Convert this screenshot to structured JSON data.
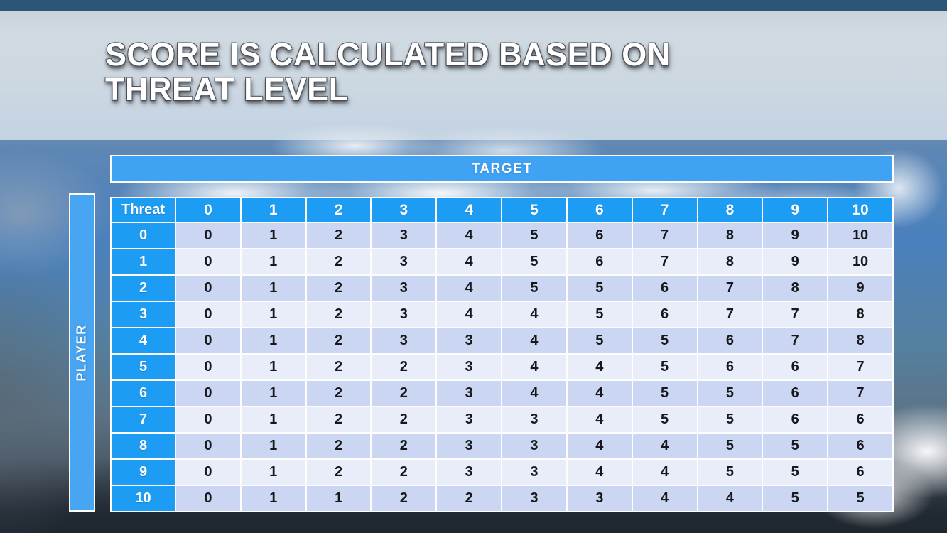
{
  "slide": {
    "title": "SCORE IS CALCULATED BASED ON THREAT LEVEL"
  },
  "matrix": {
    "target_label": "TARGET",
    "player_label": "PLAYER",
    "corner_label": "Threat",
    "column_headers": [
      "0",
      "1",
      "2",
      "3",
      "4",
      "5",
      "6",
      "7",
      "8",
      "9",
      "10"
    ],
    "rows": [
      {
        "threat": "0",
        "values": [
          0,
          1,
          2,
          3,
          4,
          5,
          6,
          7,
          8,
          9,
          10
        ]
      },
      {
        "threat": "1",
        "values": [
          0,
          1,
          2,
          3,
          4,
          5,
          6,
          7,
          8,
          9,
          10
        ]
      },
      {
        "threat": "2",
        "values": [
          0,
          1,
          2,
          3,
          4,
          5,
          5,
          6,
          7,
          8,
          9
        ]
      },
      {
        "threat": "3",
        "values": [
          0,
          1,
          2,
          3,
          4,
          4,
          5,
          6,
          7,
          7,
          8
        ]
      },
      {
        "threat": "4",
        "values": [
          0,
          1,
          2,
          3,
          3,
          4,
          5,
          5,
          6,
          7,
          8
        ]
      },
      {
        "threat": "5",
        "values": [
          0,
          1,
          2,
          2,
          3,
          4,
          4,
          5,
          6,
          6,
          7
        ]
      },
      {
        "threat": "6",
        "values": [
          0,
          1,
          2,
          2,
          3,
          4,
          4,
          5,
          5,
          6,
          7
        ]
      },
      {
        "threat": "7",
        "values": [
          0,
          1,
          2,
          2,
          3,
          3,
          4,
          5,
          5,
          6,
          6
        ]
      },
      {
        "threat": "8",
        "values": [
          0,
          1,
          2,
          2,
          3,
          3,
          4,
          4,
          5,
          5,
          6
        ]
      },
      {
        "threat": "9",
        "values": [
          0,
          1,
          2,
          2,
          3,
          3,
          4,
          4,
          5,
          5,
          6
        ]
      },
      {
        "threat": "10",
        "values": [
          0,
          1,
          1,
          2,
          2,
          3,
          3,
          4,
          4,
          5,
          5
        ]
      }
    ]
  },
  "chart_data": {
    "type": "table",
    "title": "Score is calculated based on threat level",
    "row_axis_label": "PLAYER",
    "col_axis_label": "TARGET",
    "corner_label": "Threat",
    "columns": [
      "0",
      "1",
      "2",
      "3",
      "4",
      "5",
      "6",
      "7",
      "8",
      "9",
      "10"
    ],
    "row_labels": [
      "0",
      "1",
      "2",
      "3",
      "4",
      "5",
      "6",
      "7",
      "8",
      "9",
      "10"
    ],
    "values": [
      [
        0,
        1,
        2,
        3,
        4,
        5,
        6,
        7,
        8,
        9,
        10
      ],
      [
        0,
        1,
        2,
        3,
        4,
        5,
        6,
        7,
        8,
        9,
        10
      ],
      [
        0,
        1,
        2,
        3,
        4,
        5,
        5,
        6,
        7,
        8,
        9
      ],
      [
        0,
        1,
        2,
        3,
        4,
        4,
        5,
        6,
        7,
        7,
        8
      ],
      [
        0,
        1,
        2,
        3,
        3,
        4,
        5,
        5,
        6,
        7,
        8
      ],
      [
        0,
        1,
        2,
        2,
        3,
        4,
        4,
        5,
        6,
        6,
        7
      ],
      [
        0,
        1,
        2,
        2,
        3,
        4,
        4,
        5,
        5,
        6,
        7
      ],
      [
        0,
        1,
        2,
        2,
        3,
        3,
        4,
        5,
        5,
        6,
        6
      ],
      [
        0,
        1,
        2,
        2,
        3,
        3,
        4,
        4,
        5,
        5,
        6
      ],
      [
        0,
        1,
        2,
        2,
        3,
        3,
        4,
        4,
        5,
        5,
        6
      ],
      [
        0,
        1,
        1,
        2,
        2,
        3,
        3,
        4,
        4,
        5,
        5
      ]
    ]
  },
  "colors": {
    "accent_blue_header": "#1d9cf3",
    "accent_blue_bars": "#3fa2f3",
    "row_dark": "#cbd6f2",
    "row_light": "#e9edf9",
    "top_bar": "#2b5677",
    "grid_line": "#fdfdfd"
  }
}
